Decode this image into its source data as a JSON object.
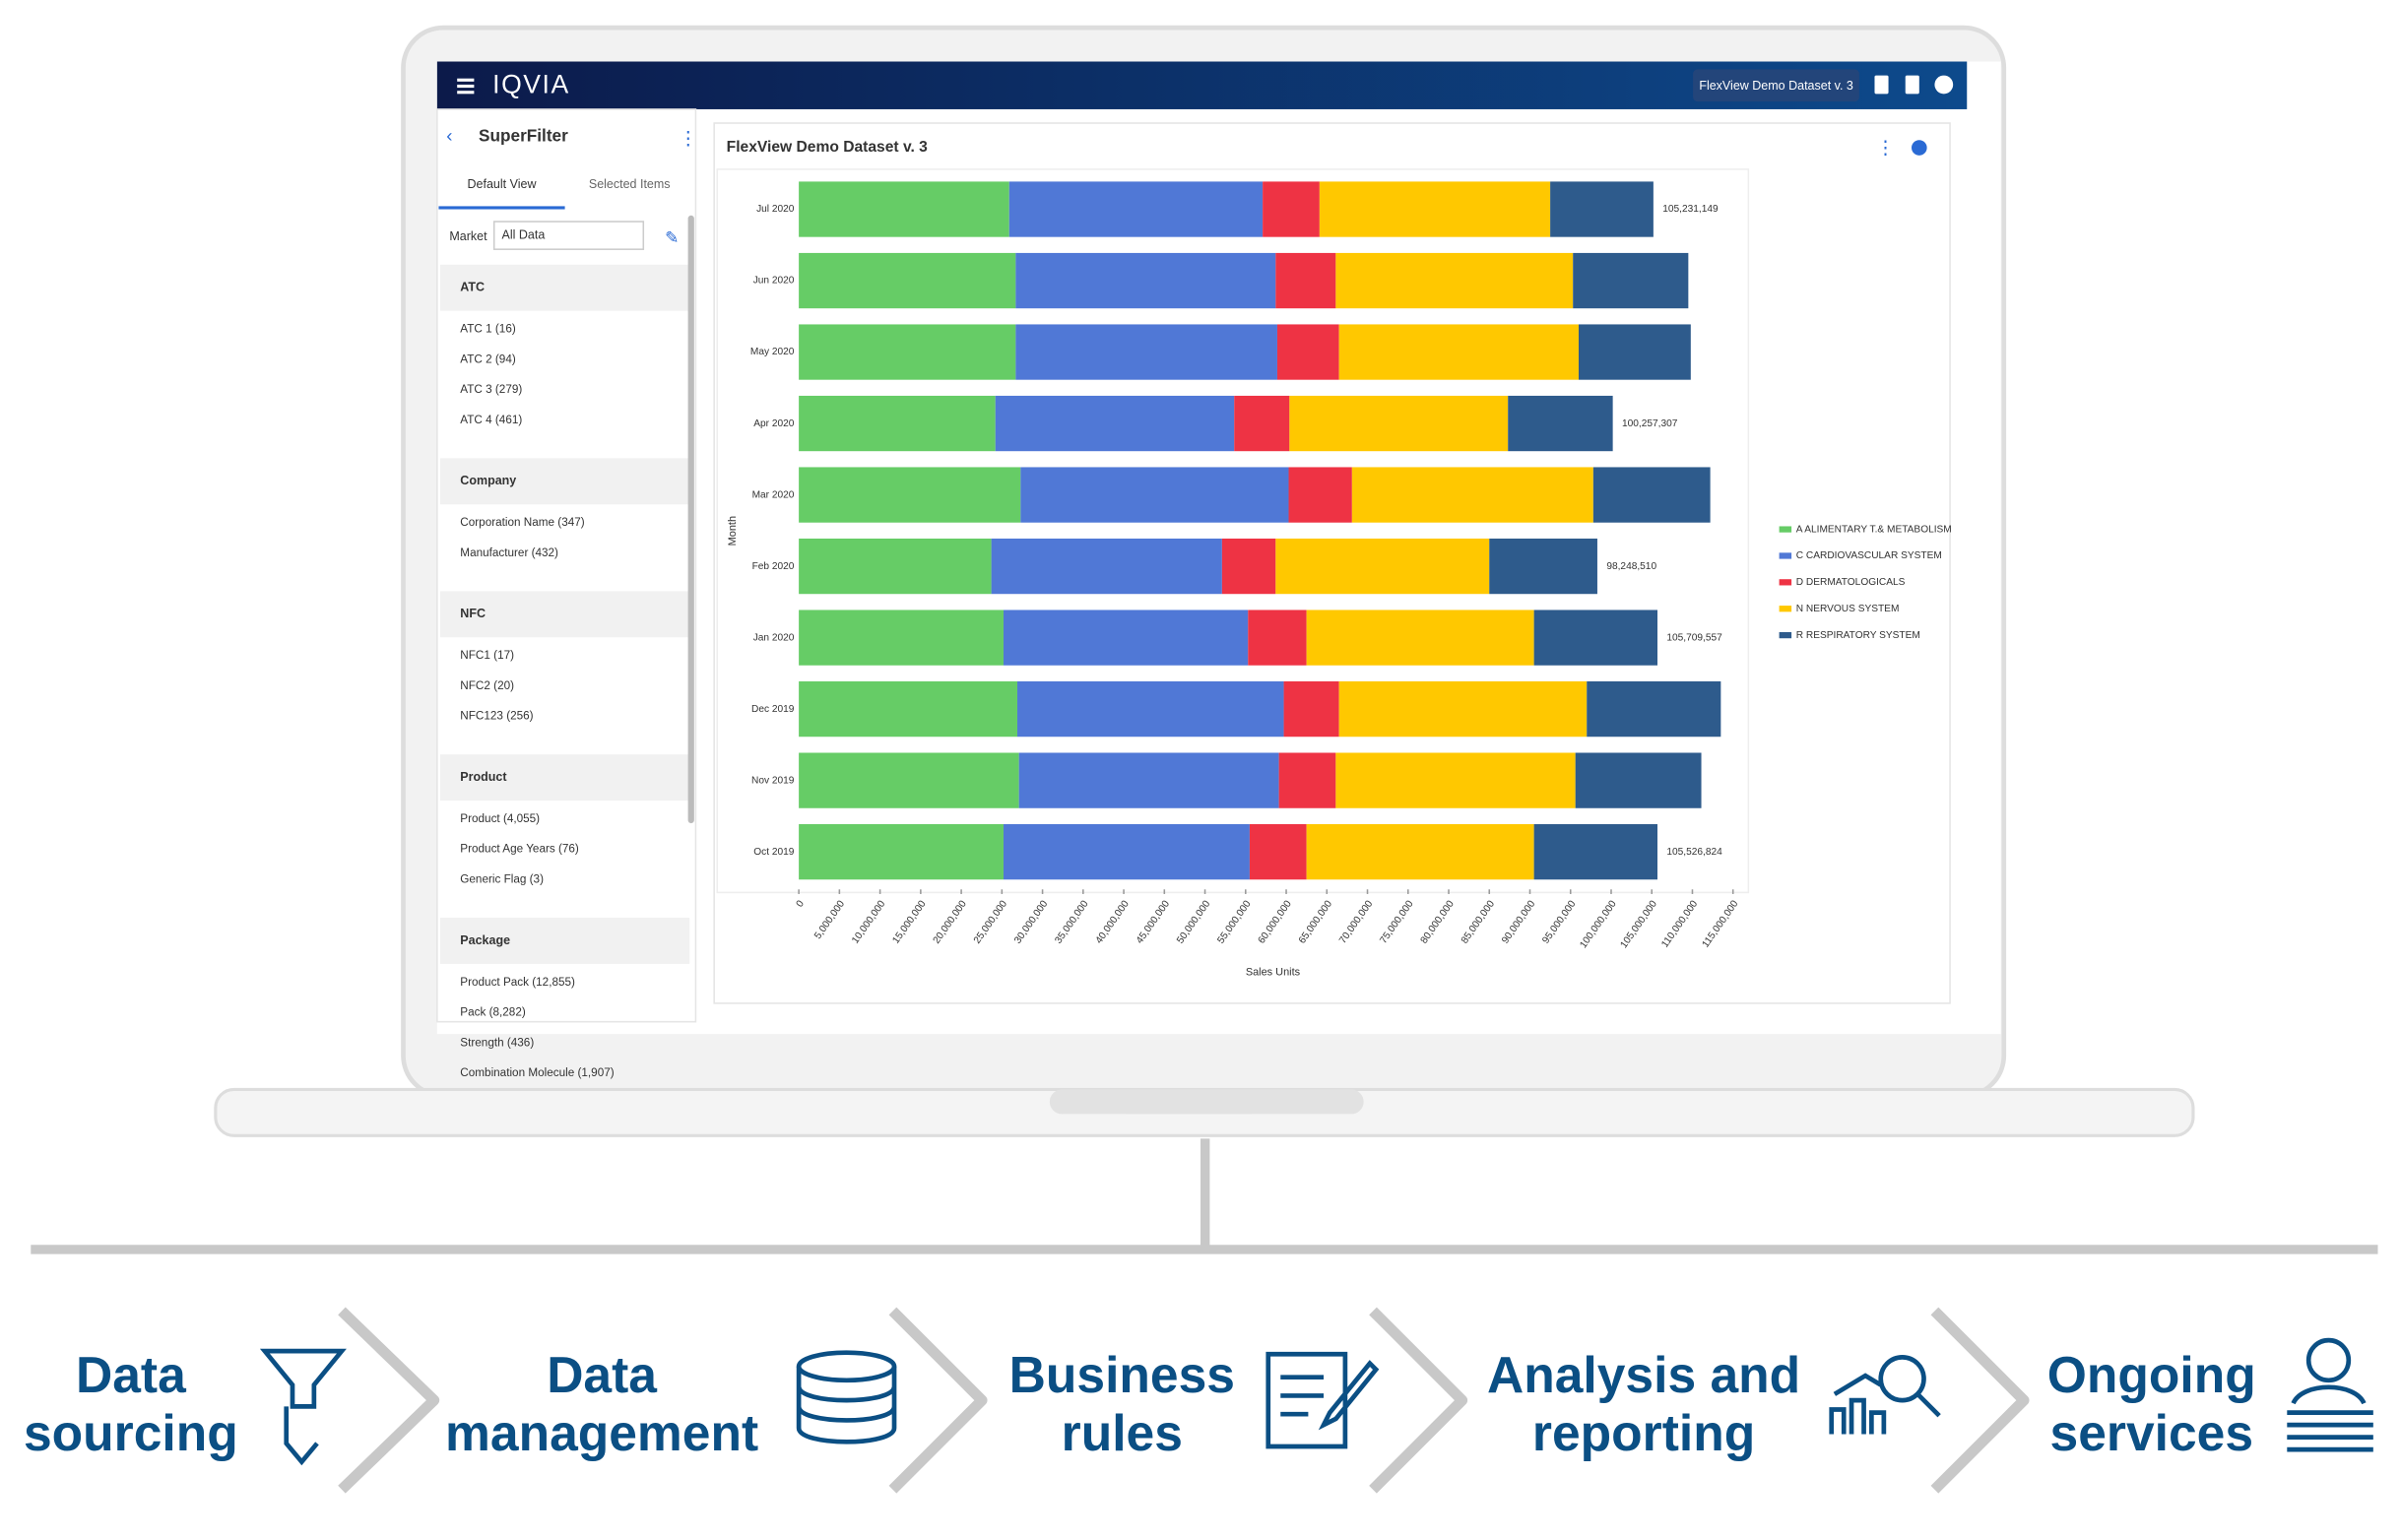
{
  "header": {
    "brand": "IQVIA",
    "dataset_menu": "FlexView Demo Dataset v. 3"
  },
  "sidebar": {
    "title": "SuperFilter",
    "tabs": [
      "Default View",
      "Selected Items"
    ],
    "market_label": "Market",
    "market_value": "All Data",
    "groups": [
      {
        "name": "ATC",
        "items": [
          "ATC 1 (16)",
          "ATC 2 (94)",
          "ATC 3 (279)",
          "ATC 4 (461)"
        ]
      },
      {
        "name": "Company",
        "items": [
          "Corporation Name (347)",
          "Manufacturer (432)"
        ]
      },
      {
        "name": "NFC",
        "items": [
          "NFC1 (17)",
          "NFC2 (20)",
          "NFC123 (256)"
        ]
      },
      {
        "name": "Product",
        "items": [
          "Product (4,055)",
          "Product Age Years (76)",
          "Generic Flag (3)"
        ]
      },
      {
        "name": "Package",
        "items": [
          "Product Pack (12,855)",
          "Pack (8,282)",
          "Strength (436)",
          "Combination Molecule (1,907)"
        ]
      }
    ]
  },
  "chart_data": {
    "type": "stacked_barh",
    "title": "FlexView Demo Dataset v. 3",
    "ylabel": "Month",
    "xlabel": "Sales Units",
    "categories": [
      "Jul 2020",
      "Jun 2020",
      "May 2020",
      "Apr 2020",
      "Mar 2020",
      "Feb 2020",
      "Jan 2020",
      "Dec 2019",
      "Nov 2019",
      "Oct 2019"
    ],
    "total_labels": [
      "105,231,149",
      null,
      null,
      "100,257,307",
      null,
      "98,248,510",
      "105,709,557",
      null,
      null,
      "105,526,824"
    ],
    "series": [
      {
        "name": "A ALIMENTARY T.& METABOLISM",
        "color": "#66cc66",
        "values": [
          25900000,
          26700000,
          26700000,
          24200000,
          27300000,
          23700000,
          25200000,
          26900000,
          27100000,
          25200000
        ]
      },
      {
        "name": "C CARDIOVASCULAR SYSTEM",
        "color": "#5078d6",
        "values": [
          31200000,
          32000000,
          32200000,
          29400000,
          33000000,
          28400000,
          30100000,
          32800000,
          32000000,
          30300000
        ]
      },
      {
        "name": "D DERMATOLOGICALS",
        "color": "#ee3344",
        "values": [
          7000000,
          7400000,
          7600000,
          6800000,
          7800000,
          6600000,
          7200000,
          6800000,
          7000000,
          7000000
        ]
      },
      {
        "name": "N NERVOUS SYSTEM",
        "color": "#ffc800",
        "values": [
          28400000,
          29200000,
          29500000,
          26900000,
          29700000,
          26300000,
          28000000,
          30500000,
          29500000,
          28000000
        ]
      },
      {
        "name": "R RESPIRATORY SYSTEM",
        "color": "#2e5b8c",
        "values": [
          12700000,
          14200000,
          13800000,
          12900000,
          14400000,
          13300000,
          15200000,
          16500000,
          15500000,
          15200000
        ]
      }
    ],
    "xlim": [
      0,
      115000000
    ],
    "xticks": [
      0,
      {
        "value": 5000000,
        "label": "5,000,000"
      },
      {
        "value": 10000000,
        "label": "10,000,000"
      },
      {
        "value": 15000000,
        "label": "15,000,000"
      },
      {
        "value": 20000000,
        "label": "20,000,000"
      },
      {
        "value": 25000000,
        "label": "25,000,000"
      },
      {
        "value": 30000000,
        "label": "30,000,000"
      },
      {
        "value": 35000000,
        "label": "35,000,000"
      },
      {
        "value": 40000000,
        "label": "40,000,000"
      },
      {
        "value": 45000000,
        "label": "45,000,000"
      },
      {
        "value": 50000000,
        "label": "50,000,000"
      },
      {
        "value": 55000000,
        "label": "55,000,000"
      },
      {
        "value": 60000000,
        "label": "60,000,000"
      },
      {
        "value": 65000000,
        "label": "65,000,000"
      },
      {
        "value": 70000000,
        "label": "70,000,000"
      },
      {
        "value": 75000000,
        "label": "75,000,000"
      },
      {
        "value": 80000000,
        "label": "80,000,000"
      },
      {
        "value": 85000000,
        "label": "85,000,000"
      },
      {
        "value": 90000000,
        "label": "90,000,000"
      },
      {
        "value": 95000000,
        "label": "95,000,000"
      },
      {
        "value": 100000000,
        "label": "100,000,000"
      },
      {
        "value": 105000000,
        "label": "105,000,000"
      },
      {
        "value": 110000000,
        "label": "110,000,000"
      },
      {
        "value": 115000000,
        "label": "115,000,000"
      }
    ],
    "legend": "right"
  },
  "steps": [
    {
      "lines": [
        "Data",
        "sourcing"
      ]
    },
    {
      "lines": [
        "Data",
        "management"
      ]
    },
    {
      "lines": [
        "Business",
        "rules"
      ]
    },
    {
      "lines": [
        "Analysis and",
        "reporting"
      ]
    },
    {
      "lines": [
        "Ongoing",
        "services"
      ]
    }
  ]
}
